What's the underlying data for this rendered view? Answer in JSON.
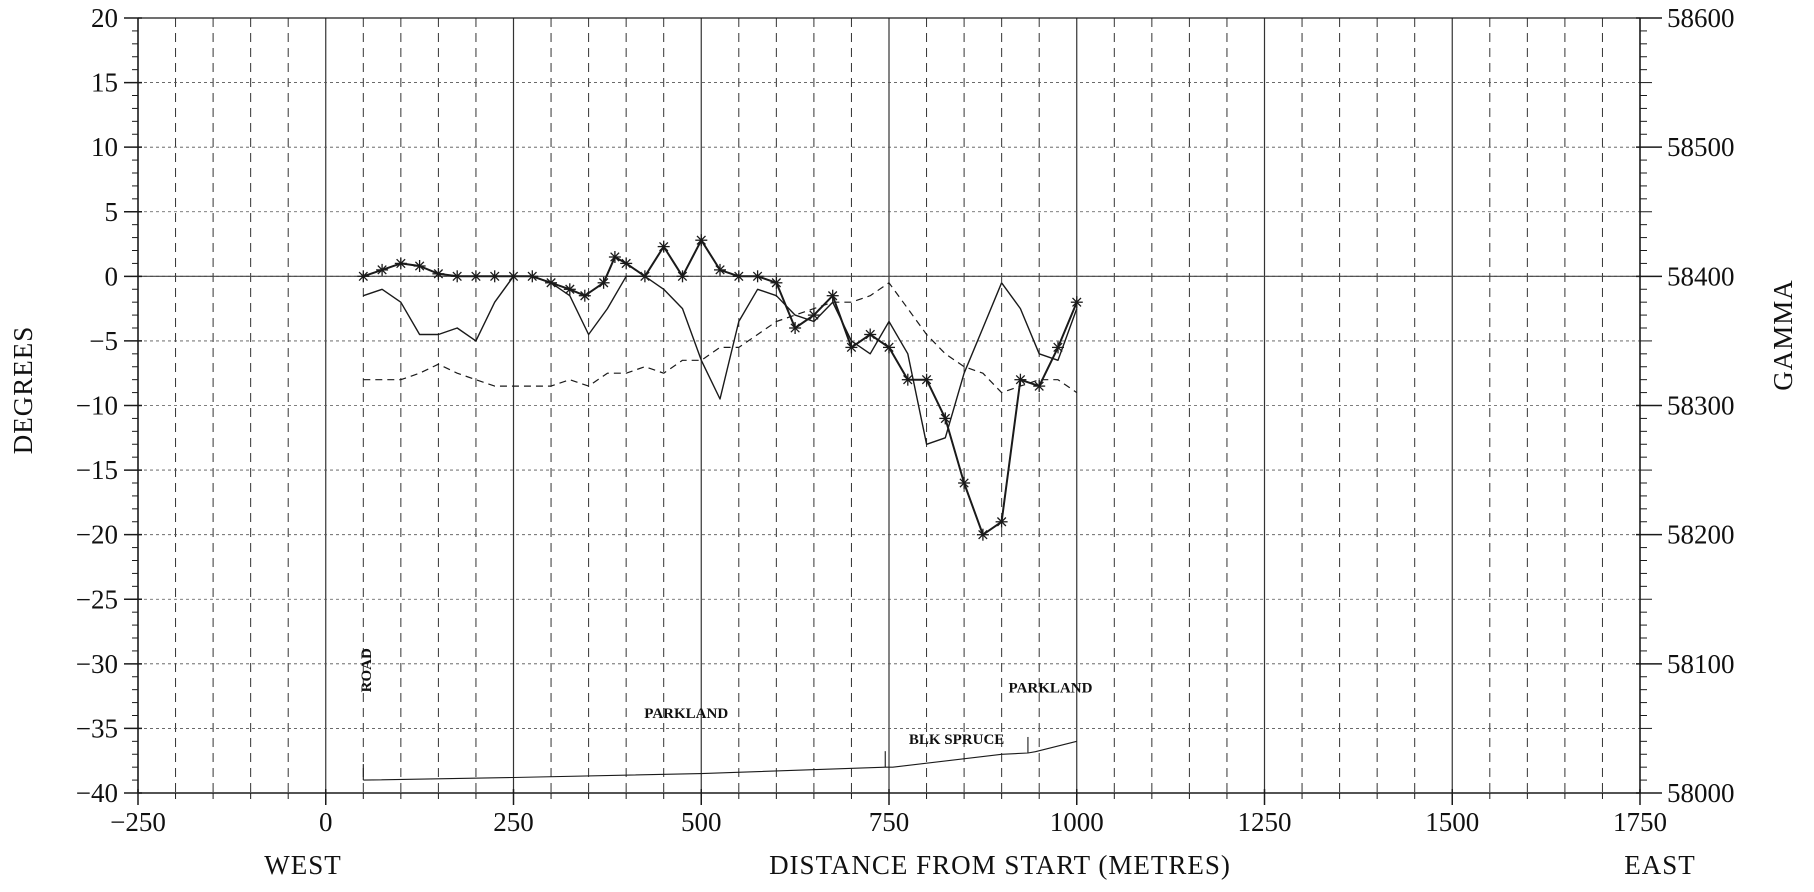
{
  "chart_data": {
    "type": "line",
    "xlabel": "DISTANCE FROM START (METRES)",
    "xlabel_left": "WEST",
    "xlabel_right": "EAST",
    "ylabel": "DEGREES",
    "ylabel_right": "GAMMA",
    "xlim": [
      -250,
      1750
    ],
    "ylim": [
      -40,
      20
    ],
    "ylim_right": [
      58000,
      58600
    ],
    "x_ticks": [
      -250,
      0,
      250,
      500,
      750,
      1000,
      1250,
      1500,
      1750
    ],
    "x_tick_labels": [
      "−250",
      "0",
      "250",
      "500",
      "750",
      "1000",
      "1250",
      "1500",
      "1750"
    ],
    "y_ticks": [
      20,
      15,
      10,
      5,
      0,
      -5,
      -10,
      -15,
      -20,
      -25,
      -30,
      -35,
      -40
    ],
    "y_tick_labels": [
      "20",
      "15",
      "10",
      "5",
      "0",
      "−5",
      "−10",
      "−15",
      "−20",
      "−25",
      "−30",
      "−35",
      "−40"
    ],
    "y_right_ticks": [
      58600,
      58500,
      58400,
      58300,
      58200,
      58100,
      58000
    ],
    "y_right_tick_labels": [
      "58600",
      "58500",
      "58400",
      "58300",
      "58200",
      "58100",
      "58000"
    ],
    "grid": true,
    "series": [
      {
        "style": "solid-star",
        "axis": "left",
        "x": [
          50,
          75,
          100,
          125,
          150,
          175,
          200,
          225,
          250,
          275,
          300,
          325,
          345,
          370,
          385,
          400,
          425,
          450,
          475,
          500,
          525,
          550,
          575,
          600,
          625,
          650,
          675,
          700,
          725,
          750,
          775,
          800,
          825,
          850,
          875,
          900,
          925,
          950,
          975,
          1000
        ],
        "y": [
          0.0,
          0.5,
          1.0,
          0.8,
          0.2,
          0.0,
          0.0,
          0.0,
          0.0,
          0.0,
          -0.5,
          -1.0,
          -1.5,
          -0.5,
          1.5,
          1.0,
          0.0,
          2.3,
          0.0,
          2.8,
          0.5,
          0.0,
          0.0,
          -0.5,
          -4.0,
          -3.0,
          -1.5,
          -5.5,
          -4.5,
          -5.5,
          -8.0,
          -8.0,
          -11.0,
          -16.0,
          -20.0,
          -19.0,
          -8.0,
          -8.5,
          -5.5,
          -2.0
        ]
      },
      {
        "style": "solid",
        "axis": "left",
        "x": [
          50,
          75,
          100,
          125,
          150,
          175,
          200,
          225,
          250,
          275,
          300,
          325,
          350,
          375,
          400,
          425,
          450,
          475,
          500,
          525,
          550,
          575,
          600,
          625,
          650,
          675,
          700,
          725,
          750,
          775,
          800,
          825,
          850,
          875,
          900,
          925,
          950,
          975,
          1000
        ],
        "y": [
          -1.5,
          -1.0,
          -2.0,
          -4.5,
          -4.5,
          -4.0,
          -5.0,
          -2.0,
          0.0,
          0.0,
          -0.5,
          -1.5,
          -4.5,
          -2.5,
          0.0,
          0.0,
          -1.0,
          -2.5,
          -6.5,
          -9.5,
          -3.5,
          -1.0,
          -1.5,
          -3.0,
          -3.5,
          -2.0,
          -5.0,
          -6.0,
          -3.5,
          -6.0,
          -13.0,
          -12.5,
          -7.5,
          -4.0,
          -0.5,
          -2.5,
          -6.0,
          -6.5,
          -2.5
        ]
      },
      {
        "style": "dashed",
        "axis": "left",
        "x": [
          50,
          75,
          100,
          125,
          150,
          175,
          200,
          225,
          250,
          275,
          300,
          325,
          350,
          375,
          400,
          425,
          450,
          475,
          500,
          525,
          550,
          575,
          600,
          625,
          650,
          675,
          700,
          725,
          750,
          775,
          800,
          825,
          850,
          875,
          900,
          925,
          950,
          975,
          1000
        ],
        "y": [
          -8.0,
          -8.0,
          -8.0,
          -7.5,
          -6.8,
          -7.5,
          -8.0,
          -8.5,
          -8.5,
          -8.5,
          -8.5,
          -8.0,
          -8.5,
          -7.5,
          -7.5,
          -7.0,
          -7.5,
          -6.5,
          -6.5,
          -5.5,
          -5.5,
          -4.5,
          -3.5,
          -3.0,
          -2.5,
          -2.0,
          -2.0,
          -1.5,
          -0.5,
          -2.5,
          -4.5,
          -6.0,
          -7.0,
          -7.5,
          -9.0,
          -8.5,
          -8.0,
          -8.0,
          -9.0
        ]
      },
      {
        "style": "thin",
        "axis": "left",
        "x": [
          50,
          250,
          500,
          745,
          755,
          900,
          935,
          945,
          1000
        ],
        "y": [
          -39.0,
          -38.8,
          -38.5,
          -38.0,
          -38.0,
          -37.0,
          -36.9,
          -36.8,
          -36.0
        ]
      }
    ],
    "annotations": [
      {
        "text": "ROAD",
        "x": 60,
        "y": -30.5,
        "rotate": -90
      },
      {
        "text": "PARKLAND",
        "x": 480,
        "y": -34.2
      },
      {
        "text": "BLK SPRUCE",
        "x": 840,
        "y": -36.2
      },
      {
        "text": "PARKLAND",
        "x": 965,
        "y": -32.2
      }
    ],
    "colors": {
      "ink": "#1a1a1a",
      "grid": "#333333",
      "background": "#ffffff"
    }
  }
}
